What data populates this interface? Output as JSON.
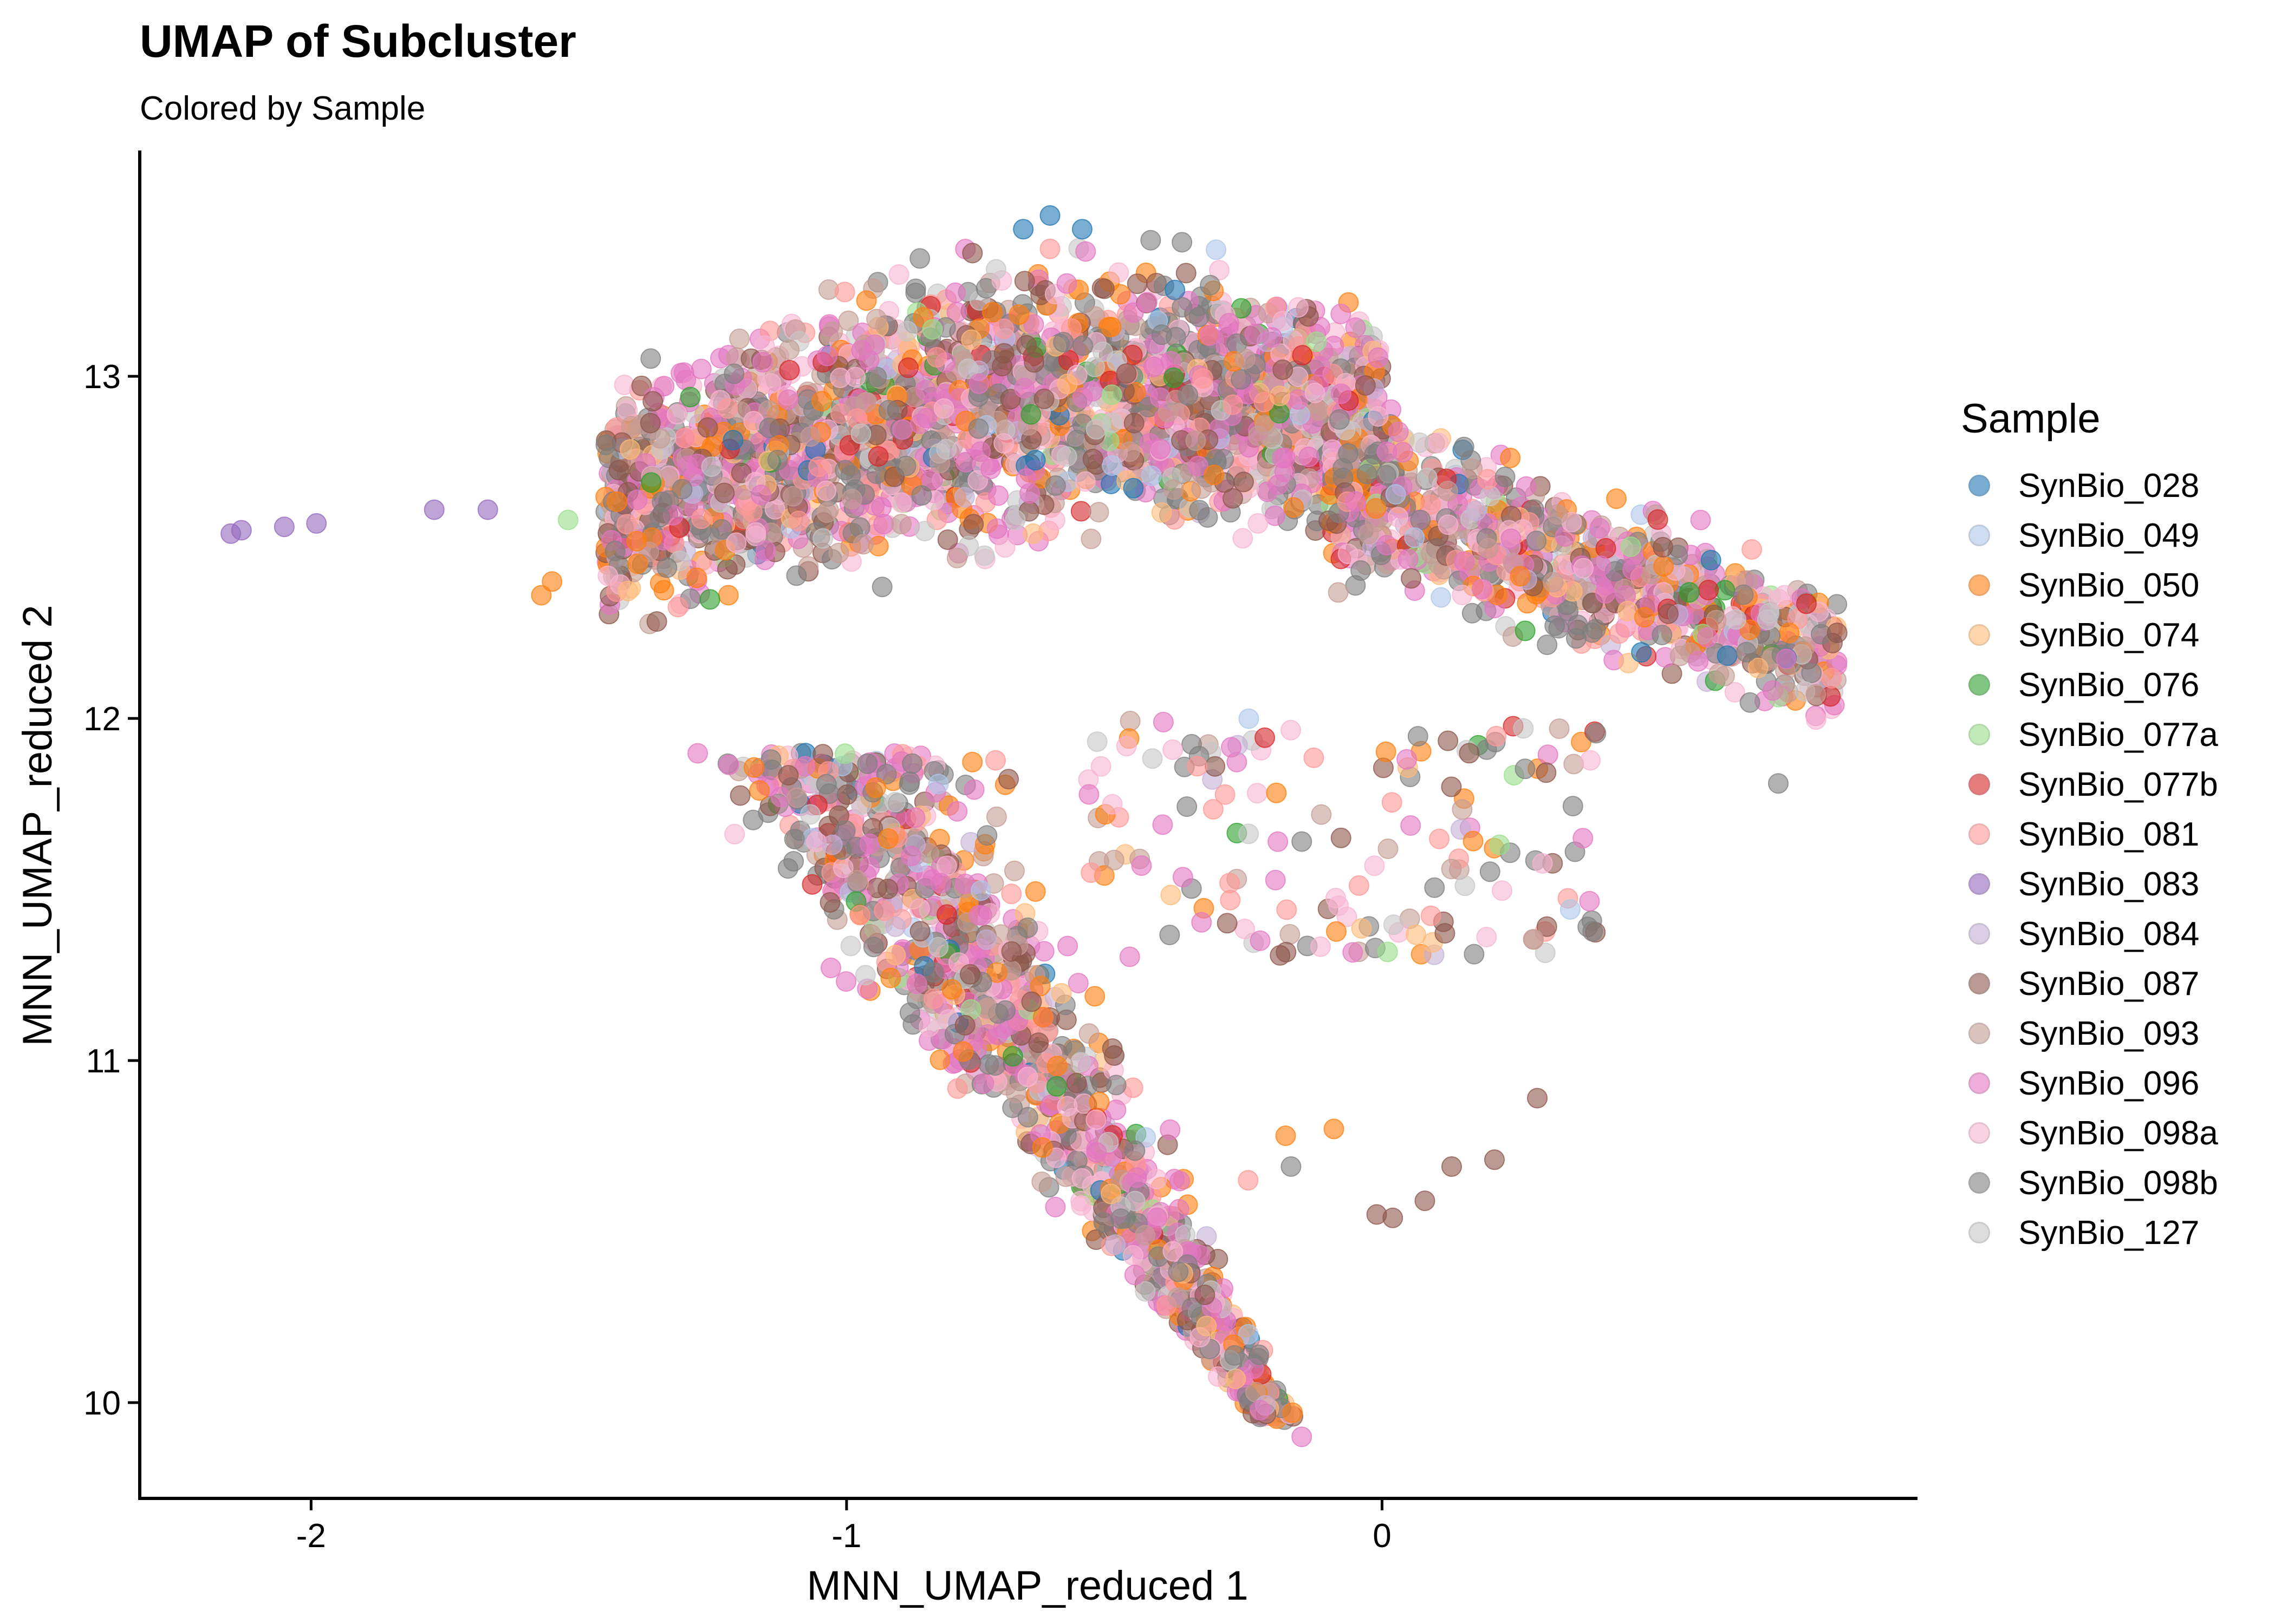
{
  "chart_data": {
    "type": "scatter",
    "title": "UMAP of Subcluster",
    "subtitle": "Colored by Sample",
    "xlabel": "MNN_UMAP_reduced 1",
    "ylabel": "MNN_UMAP_reduced 2",
    "xlim": [
      -2.32,
      1.0
    ],
    "ylim": [
      9.72,
      13.66
    ],
    "x_ticks": [
      -2,
      -1,
      0
    ],
    "x_tick_labels": [
      "-2",
      "-1",
      "0"
    ],
    "y_ticks": [
      10,
      11,
      12,
      13
    ],
    "y_tick_labels": [
      "10",
      "11",
      "12",
      "13"
    ],
    "grid": false,
    "legend_position": "right",
    "legend_title": "Sample",
    "point_alpha": 0.6,
    "series": [
      {
        "name": "SynBio_028",
        "color": "#1f77b4"
      },
      {
        "name": "SynBio_049",
        "color": "#aec7e8"
      },
      {
        "name": "SynBio_050",
        "color": "#ff7f0e"
      },
      {
        "name": "SynBio_074",
        "color": "#ffbb78"
      },
      {
        "name": "SynBio_076",
        "color": "#2ca02c"
      },
      {
        "name": "SynBio_077a",
        "color": "#98df8a"
      },
      {
        "name": "SynBio_077b",
        "color": "#d62728"
      },
      {
        "name": "SynBio_081",
        "color": "#ff9896"
      },
      {
        "name": "SynBio_083",
        "color": "#9467bd"
      },
      {
        "name": "SynBio_084",
        "color": "#c5b0d5"
      },
      {
        "name": "SynBio_087",
        "color": "#8c564b"
      },
      {
        "name": "SynBio_093",
        "color": "#c49c94"
      },
      {
        "name": "SynBio_096",
        "color": "#e377c2"
      },
      {
        "name": "SynBio_098a",
        "color": "#f7b6d2"
      },
      {
        "name": "SynBio_098b",
        "color": "#7f7f7f"
      },
      {
        "name": "SynBio_127",
        "color": "#c7c7c7"
      }
    ],
    "points": [
      {
        "s": 8,
        "x": -2.15,
        "y": 12.54
      },
      {
        "s": 8,
        "x": -2.13,
        "y": 12.55
      },
      {
        "s": 8,
        "x": -2.05,
        "y": 12.56
      },
      {
        "s": 8,
        "x": -1.99,
        "y": 12.57
      },
      {
        "s": 8,
        "x": -1.77,
        "y": 12.61
      },
      {
        "s": 8,
        "x": -1.67,
        "y": 12.61
      },
      {
        "s": 0,
        "x": -0.62,
        "y": 13.47
      },
      {
        "s": 0,
        "x": -0.56,
        "y": 13.43
      },
      {
        "s": 0,
        "x": -0.67,
        "y": 13.43
      },
      {
        "s": 1,
        "x": -0.31,
        "y": 13.37
      },
      {
        "s": 10,
        "x": 0.29,
        "y": 10.89
      },
      {
        "s": 10,
        "x": 0.21,
        "y": 10.71
      },
      {
        "s": 10,
        "x": 0.13,
        "y": 10.69
      },
      {
        "s": 10,
        "x": 0.08,
        "y": 10.59
      },
      {
        "s": 10,
        "x": 0.02,
        "y": 10.54
      },
      {
        "s": 10,
        "x": -0.01,
        "y": 10.55
      },
      {
        "s": 14,
        "x": 0.74,
        "y": 11.81
      },
      {
        "s": 10,
        "x": 0.85,
        "y": 12.25
      },
      {
        "s": 11,
        "x": 0.79,
        "y": 12.21
      },
      {
        "s": 11,
        "x": 0.81,
        "y": 12.07
      },
      {
        "s": 12,
        "x": -0.15,
        "y": 9.9
      },
      {
        "s": 2,
        "x": -1.57,
        "y": 12.36
      },
      {
        "s": 2,
        "x": -1.55,
        "y": 12.4
      },
      {
        "s": 5,
        "x": -1.52,
        "y": 12.58
      },
      {
        "s": 14,
        "x": -0.23,
        "y": 10.14
      },
      {
        "s": 14,
        "x": -0.15,
        "y": 11.64
      },
      {
        "s": 14,
        "x": -0.17,
        "y": 10.69
      },
      {
        "s": 2,
        "x": -0.18,
        "y": 10.78
      },
      {
        "s": 2,
        "x": -0.09,
        "y": 10.8
      },
      {
        "s": 7,
        "x": -0.25,
        "y": 10.65
      }
    ]
  }
}
